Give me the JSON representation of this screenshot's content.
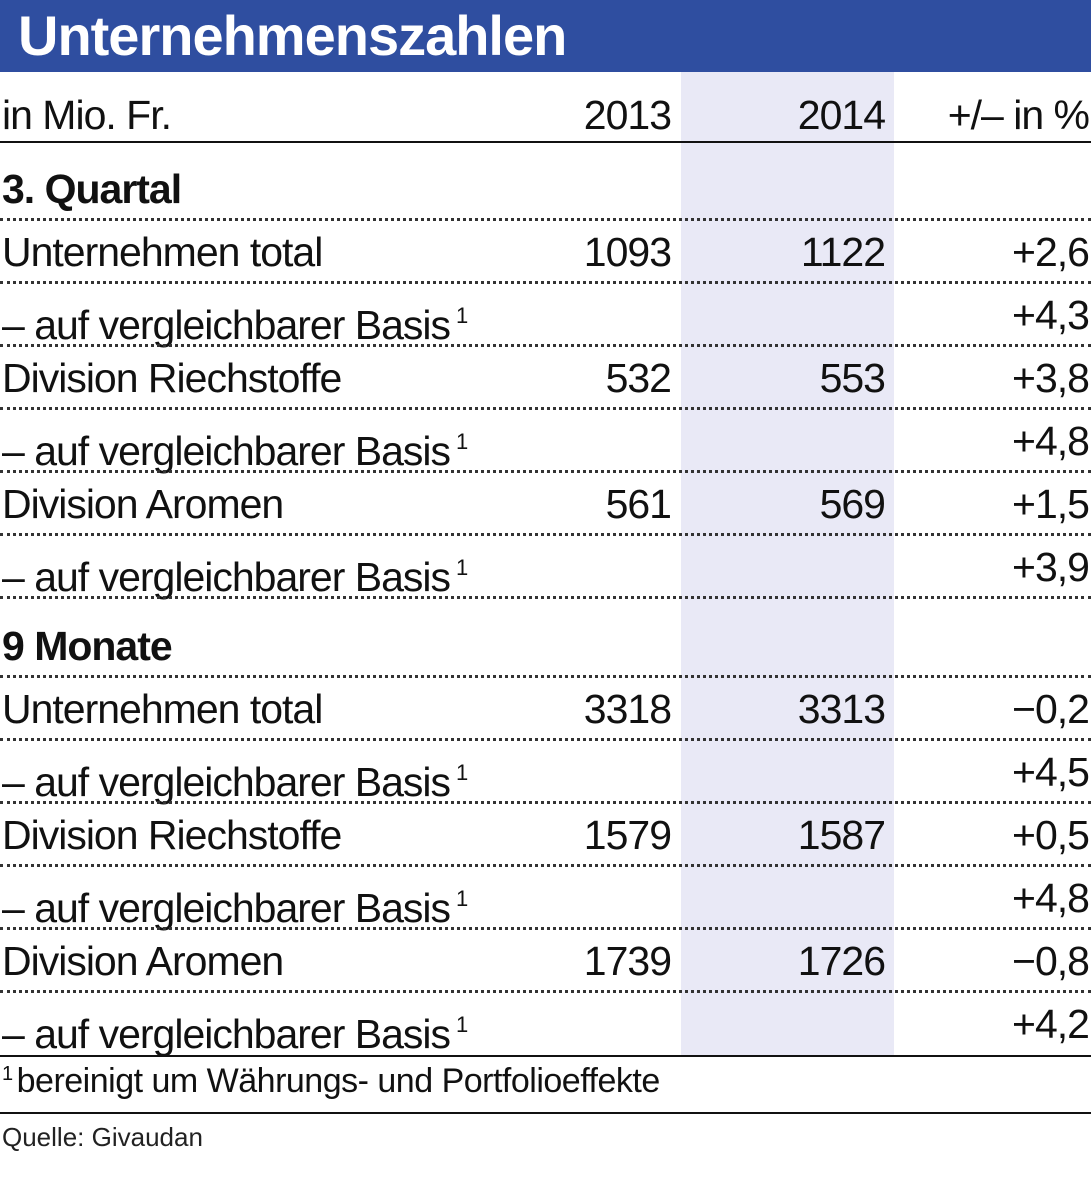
{
  "title": "Unternehmenszahlen",
  "chart_data": {
    "type": "table",
    "title": "Unternehmenszahlen",
    "columns": [
      "in Mio. Fr.",
      "2013",
      "2014",
      "+/– in %"
    ],
    "sections": [
      {
        "heading": "3. Quartal",
        "rows": [
          {
            "label": "Unternehmen total",
            "sup": "",
            "y2013": "1093",
            "y2014": "1122",
            "pct": "+2,6"
          },
          {
            "label": "– auf vergleichbarer Basis",
            "sup": "1",
            "y2013": "",
            "y2014": "",
            "pct": "+4,3"
          },
          {
            "label": "Division Riechstoffe",
            "sup": "",
            "y2013": "532",
            "y2014": "553",
            "pct": "+3,8"
          },
          {
            "label": "– auf vergleichbarer Basis",
            "sup": "1",
            "y2013": "",
            "y2014": "",
            "pct": "+4,8"
          },
          {
            "label": "Division Aromen",
            "sup": "",
            "y2013": "561",
            "y2014": "569",
            "pct": "+1,5"
          },
          {
            "label": "– auf vergleichbarer Basis",
            "sup": "1",
            "y2013": "",
            "y2014": "",
            "pct": "+3,9"
          }
        ]
      },
      {
        "heading": "9 Monate",
        "rows": [
          {
            "label": "Unternehmen total",
            "sup": "",
            "y2013": "3318",
            "y2014": "3313",
            "pct": "−0,2"
          },
          {
            "label": "– auf vergleichbarer Basis",
            "sup": "1",
            "y2013": "",
            "y2014": "",
            "pct": "+4,5"
          },
          {
            "label": "Division Riechstoffe",
            "sup": "",
            "y2013": "1579",
            "y2014": "1587",
            "pct": "+0,5"
          },
          {
            "label": "– auf vergleichbarer Basis",
            "sup": "1",
            "y2013": "",
            "y2014": "",
            "pct": "+4,8"
          },
          {
            "label": "Division Aromen",
            "sup": "",
            "y2013": "1739",
            "y2014": "1726",
            "pct": "−0,8"
          },
          {
            "label": "– auf vergleichbarer Basis",
            "sup": "1",
            "y2013": "",
            "y2014": "",
            "pct": "+4,2"
          }
        ]
      }
    ],
    "footnote_mark": "1",
    "footnote": "bereinigt um Währungs- und Portfolioeffekte",
    "source": "Quelle: Givaudan"
  },
  "colors": {
    "title_bar": "#2f4ea0",
    "highlight_column": "#e9e9f6",
    "title_text": "#ffffff"
  }
}
